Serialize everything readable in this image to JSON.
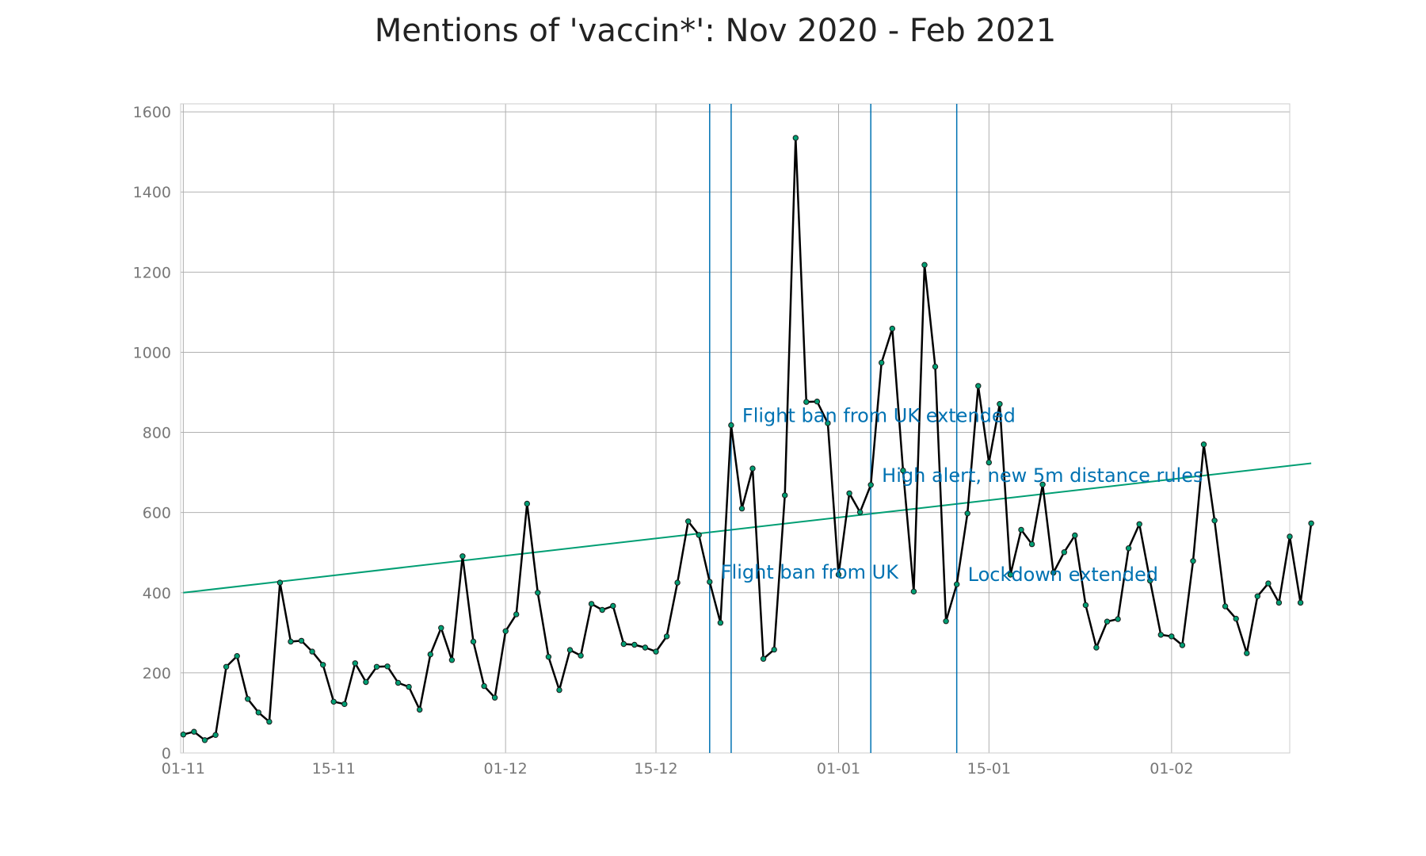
{
  "chart_data": {
    "type": "line",
    "title": "Mentions of 'vaccin*': Nov 2020 - Feb 2021",
    "xlabel": "",
    "ylabel": "",
    "x_start": "2020-11-01",
    "x_end": "2021-02-12",
    "xlim": [
      "2020-10-31T18:00",
      "2021-02-12T00:00"
    ],
    "ylim": [
      0,
      1620
    ],
    "y_ticks": [
      0,
      200,
      400,
      600,
      800,
      1000,
      1200,
      1400,
      1600
    ],
    "x_ticks": [
      {
        "date": "2020-11-01",
        "label": "01-11"
      },
      {
        "date": "2020-11-15",
        "label": "15-11"
      },
      {
        "date": "2020-12-01",
        "label": "01-12"
      },
      {
        "date": "2020-12-15",
        "label": "15-12"
      },
      {
        "date": "2021-01-01",
        "label": "01-01"
      },
      {
        "date": "2021-01-15",
        "label": "15-01"
      },
      {
        "date": "2021-02-01",
        "label": "01-02"
      }
    ],
    "grid": true,
    "colors": {
      "line": "#000000",
      "markers": "#009e73",
      "trend": "#009e73",
      "annotation": "#0072b2"
    },
    "series": [
      {
        "values": [
          46,
          53,
          32,
          45,
          215,
          242,
          135,
          101,
          78,
          425,
          278,
          280,
          253,
          220,
          128,
          122,
          224,
          177,
          215,
          216,
          175,
          165,
          108,
          246,
          312,
          232,
          491,
          278,
          167,
          138,
          304,
          346,
          622,
          400,
          240,
          157,
          257,
          243,
          372,
          357,
          367,
          272,
          270,
          263,
          253,
          291,
          425,
          578,
          544,
          427,
          325,
          818,
          610,
          710,
          235,
          258,
          643,
          1535,
          876,
          877,
          823,
          445,
          648,
          601,
          669,
          974,
          1059,
          705,
          403,
          1218,
          964,
          329,
          421,
          598,
          916,
          725,
          871,
          445,
          557,
          521,
          670,
          450,
          501,
          543,
          369,
          263,
          328,
          334,
          511,
          571,
          430,
          295,
          291,
          269,
          479,
          770,
          580,
          366,
          335,
          249,
          391,
          423,
          375,
          540,
          375,
          573
        ]
      }
    ],
    "trend_line": {
      "start": 400,
      "end": 723
    },
    "annotations": [
      {
        "date": "2020-12-20",
        "label": "Flight ban from UK"
      },
      {
        "date": "2020-12-22",
        "label": "Flight ban from UK extended"
      },
      {
        "date": "2021-01-04",
        "label": "High alert, new 5m distance rules"
      },
      {
        "date": "2021-01-12",
        "label": "Lockdown extended"
      }
    ]
  }
}
